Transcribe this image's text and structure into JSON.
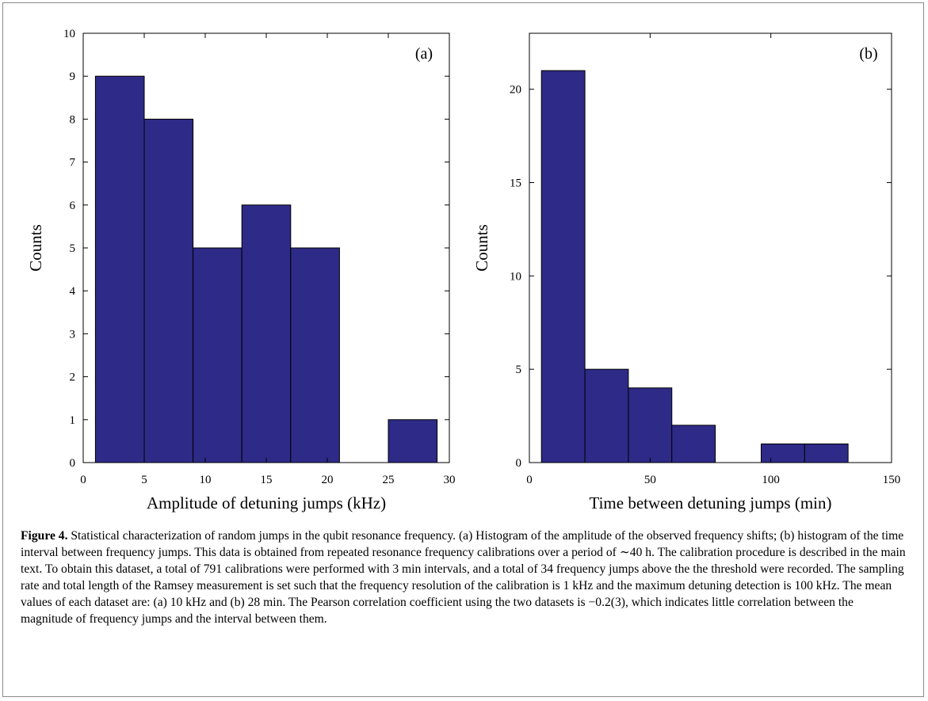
{
  "chart_data": [
    {
      "type": "bar",
      "panel_label": "(a)",
      "xlabel": "Amplitude of detuning jumps (kHz)",
      "ylabel": "Counts",
      "xlim": [
        0,
        30
      ],
      "ylim": [
        0,
        10
      ],
      "xticks": [
        0,
        5,
        10,
        15,
        20,
        25,
        30
      ],
      "yticks": [
        0,
        1,
        2,
        3,
        4,
        5,
        6,
        7,
        8,
        9,
        10
      ],
      "bins": [
        [
          1,
          5
        ],
        [
          5,
          9
        ],
        [
          9,
          13
        ],
        [
          13,
          17
        ],
        [
          17,
          21
        ],
        [
          21,
          25
        ],
        [
          25,
          29
        ]
      ],
      "values": [
        9,
        8,
        5,
        6,
        5,
        0,
        1
      ],
      "color": "#2e2a87",
      "grid": false
    },
    {
      "type": "bar",
      "panel_label": "(b)",
      "xlabel": "Time between detuning jumps (min)",
      "ylabel": "Counts",
      "xlim": [
        0,
        150
      ],
      "ylim": [
        0,
        23
      ],
      "xticks": [
        0,
        50,
        100,
        150
      ],
      "yticks": [
        0,
        5,
        10,
        15,
        20
      ],
      "bins": [
        [
          5,
          23
        ],
        [
          23,
          41
        ],
        [
          41,
          59
        ],
        [
          59,
          77
        ],
        [
          77,
          96
        ],
        [
          96,
          114
        ],
        [
          114,
          132
        ]
      ],
      "values": [
        21,
        5,
        4,
        2,
        0,
        1,
        1
      ],
      "color": "#2e2a87",
      "grid": false
    }
  ],
  "caption": {
    "label": "Figure 4.",
    "text": " Statistical characterization of random jumps in the qubit resonance frequency. (a) Histogram of the amplitude of the observed frequency shifts; (b) histogram of the time interval between frequency jumps. This data is obtained from repeated resonance frequency calibrations over a period of ∼40 h. The calibration procedure is described in the main text. To obtain this dataset, a total of 791 calibrations were performed with 3 min intervals, and a total of 34 frequency jumps above the the threshold were recorded. The sampling rate and total length of the Ramsey measurement is set such that the frequency resolution of the calibration is 1 kHz and the maximum detuning detection is 100 kHz. The mean values of each dataset are: (a) 10 kHz and (b) 28 min. The Pearson correlation coefficient using the two datasets is −0.2(3), which indicates little correlation between the magnitude of frequency jumps and the interval between them."
  }
}
